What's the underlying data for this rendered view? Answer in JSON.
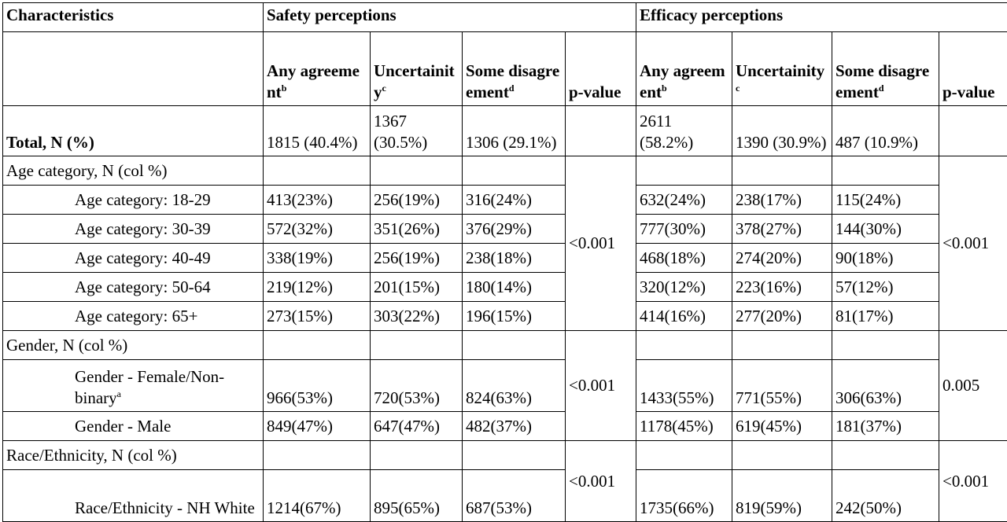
{
  "header": {
    "characteristics": "Characteristics",
    "safety": "Safety perceptions",
    "efficacy": "Efficacy perceptions"
  },
  "subheader": {
    "safety": [
      {
        "text": "Any agreement",
        "sup": "b"
      },
      {
        "text": "Uncertainity",
        "sup": "c"
      },
      {
        "text": "Some disagreement",
        "sup": "d"
      },
      {
        "text": "p-value",
        "sup": ""
      }
    ],
    "efficacy": [
      {
        "text": "Any agreement",
        "sup": "b"
      },
      {
        "text": "Uncertainity",
        "sup": "c"
      },
      {
        "text": "Some disagreement",
        "sup": "d"
      },
      {
        "text": "p-value",
        "sup": ""
      }
    ]
  },
  "total": {
    "label": "Total, N (%)",
    "safety": [
      "1815 (40.4%)",
      "1367 (30.5%)",
      "1306 (29.1%)"
    ],
    "efficacy": [
      "2611 (58.2%)",
      "1390 (30.9%)",
      "487 (10.9%)"
    ]
  },
  "sections": [
    {
      "label": "Age category, N (col %)",
      "safety_p": "<0.001",
      "efficacy_p": "<0.001",
      "rows": [
        {
          "label": "Age category: 18-29",
          "sup": "",
          "safety": [
            "413(23%)",
            "256(19%)",
            "316(24%)"
          ],
          "efficacy": [
            "632(24%)",
            "238(17%)",
            "115(24%)"
          ]
        },
        {
          "label": "Age category: 30-39",
          "sup": "",
          "safety": [
            "572(32%)",
            "351(26%)",
            "376(29%)"
          ],
          "efficacy": [
            "777(30%)",
            "378(27%)",
            "144(30%)"
          ]
        },
        {
          "label": "Age category: 40-49",
          "sup": "",
          "safety": [
            "338(19%)",
            "256(19%)",
            "238(18%)"
          ],
          "efficacy": [
            "468(18%)",
            "274(20%)",
            "90(18%)"
          ]
        },
        {
          "label": "Age category: 50-64",
          "sup": "",
          "safety": [
            "219(12%)",
            "201(15%)",
            "180(14%)"
          ],
          "efficacy": [
            "320(12%)",
            "223(16%)",
            "57(12%)"
          ]
        },
        {
          "label": "Age category: 65+",
          "sup": "",
          "safety": [
            "273(15%)",
            "303(22%)",
            "196(15%)"
          ],
          "efficacy": [
            "414(16%)",
            "277(20%)",
            "81(17%)"
          ]
        }
      ]
    },
    {
      "label": "Gender, N (col %)",
      "safety_p": "<0.001",
      "efficacy_p": "0.005",
      "rows": [
        {
          "label": "Gender - Female/Non-binary",
          "sup": "a",
          "tall": true,
          "safety": [
            "966(53%)",
            "720(53%)",
            "824(63%)"
          ],
          "efficacy": [
            "1433(55%)",
            "771(55%)",
            "306(63%)"
          ]
        },
        {
          "label": "Gender - Male",
          "sup": "",
          "safety": [
            "849(47%)",
            "647(47%)",
            "482(37%)"
          ],
          "efficacy": [
            "1178(45%)",
            "619(45%)",
            "181(37%)"
          ]
        }
      ]
    },
    {
      "label": "Race/Ethnicity, N (col %)",
      "safety_p": "<0.001",
      "efficacy_p": "<0.001",
      "rows": [
        {
          "label": "Race/Ethnicity - NH White",
          "sup": "",
          "tall": true,
          "safety": [
            "1214(67%)",
            "895(65%)",
            "687(53%)"
          ],
          "efficacy": [
            "1735(66%)",
            "819(59%)",
            "242(50%)"
          ]
        }
      ]
    }
  ]
}
